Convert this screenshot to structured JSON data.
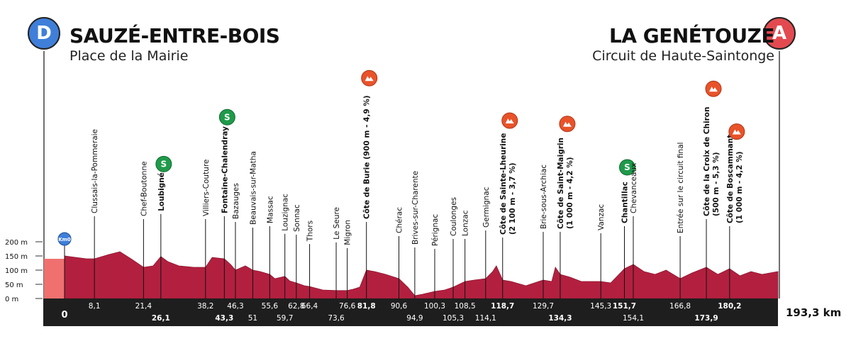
{
  "start": {
    "letter": "D",
    "name": "SAUZÉ-ENTRE-BOIS",
    "place": "Place de la Mairie",
    "km0_label": "Km0",
    "color": "#3f7fd9"
  },
  "finish": {
    "letter": "A",
    "name": "LA GENÉTOUZE",
    "place": "Circuit de Haute-Saintonge",
    "color": "#e24a50"
  },
  "total_distance_label": "193,3 km",
  "colors": {
    "profile": "#b3203f",
    "profile_start": "#f07070",
    "band": "#1e1e1e",
    "climb_marker": "#e8532a",
    "sprint_marker": "#1f9a4a"
  },
  "chart_data": {
    "type": "area",
    "xlim": [
      0,
      193.3
    ],
    "ylim": [
      0,
      200
    ],
    "y_ticks": [
      {
        "value": 0,
        "label": "0 m"
      },
      {
        "value": 50,
        "label": "50 m"
      },
      {
        "value": 100,
        "label": "100 m"
      },
      {
        "value": 150,
        "label": "150 m"
      },
      {
        "value": 200,
        "label": "200 m"
      }
    ],
    "x_label_start": "0",
    "x_label_end": "193,3 km",
    "profile": {
      "x": [
        0,
        3,
        6,
        8.1,
        12,
        15,
        18,
        21.4,
        24,
        26.1,
        28,
        31,
        35,
        38.2,
        40,
        43.3,
        45,
        46.3,
        49,
        51,
        53,
        55.6,
        57,
        59.7,
        61,
        62.8,
        65,
        66.4,
        70,
        73.6,
        76.6,
        78,
        80,
        81.8,
        84,
        87,
        90.6,
        93,
        94.9,
        97,
        100.3,
        103,
        105.3,
        108.5,
        111,
        114.1,
        116,
        117,
        118.7,
        121,
        125,
        129.7,
        132,
        133,
        134.3,
        137,
        140,
        145.3,
        148,
        151.7,
        154.1,
        157,
        160,
        163,
        166.8,
        170,
        173.9,
        177,
        180.2,
        183,
        186,
        189,
        193.3
      ],
      "y": [
        150,
        145,
        140,
        140,
        155,
        165,
        140,
        110,
        115,
        148,
        130,
        115,
        110,
        110,
        145,
        140,
        120,
        100,
        115,
        100,
        95,
        85,
        70,
        78,
        62,
        55,
        45,
        42,
        30,
        28,
        28,
        32,
        40,
        100,
        95,
        85,
        70,
        40,
        10,
        15,
        25,
        30,
        40,
        60,
        65,
        70,
        95,
        115,
        65,
        60,
        45,
        65,
        60,
        110,
        85,
        75,
        60,
        60,
        55,
        105,
        120,
        95,
        85,
        100,
        70,
        90,
        110,
        85,
        105,
        80,
        95,
        85,
        95
      ]
    },
    "km_markers": [
      {
        "km": 8.1,
        "label": "8,1",
        "row": 1,
        "bold": false,
        "place": "Clussais-la-Pommeraie"
      },
      {
        "km": 21.4,
        "label": "21,4",
        "row": 1,
        "bold": false,
        "place": "Chef-Boutonne"
      },
      {
        "km": 26.1,
        "label": "26,1",
        "row": 2,
        "bold": true,
        "place": "Loubigné",
        "sprint": true
      },
      {
        "km": 38.2,
        "label": "38,2",
        "row": 1,
        "bold": false,
        "place": "Villiers-Couture"
      },
      {
        "km": 43.3,
        "label": "43,3",
        "row": 2,
        "bold": true,
        "place": "Fontaine-Chalendray",
        "sprint": true
      },
      {
        "km": 46.3,
        "label": "46,3",
        "row": 1,
        "bold": false,
        "place": "Bazauges"
      },
      {
        "km": 51,
        "label": "51",
        "row": 2,
        "bold": false,
        "place": "Beauvais-sur-Matha"
      },
      {
        "km": 55.6,
        "label": "55,6",
        "row": 1,
        "bold": false,
        "place": "Massac"
      },
      {
        "km": 59.7,
        "label": "59,7",
        "row": 2,
        "bold": false,
        "place": "Louzignac"
      },
      {
        "km": 62.8,
        "label": "62,8",
        "row": 1,
        "bold": false,
        "place": "Sonnac"
      },
      {
        "km": 66.4,
        "label": "66,4",
        "row": 1,
        "bold": false,
        "place": "Thors"
      },
      {
        "km": 73.6,
        "label": "73,6",
        "row": 2,
        "bold": false,
        "place": "Le Seure"
      },
      {
        "km": 76.6,
        "label": "76,6",
        "row": 1,
        "bold": false,
        "place": "Migron"
      },
      {
        "km": 81.8,
        "label": "81,8",
        "row": 1,
        "bold": true,
        "place": "Côte de Burie (900 m - 4,9 %)",
        "climb": true
      },
      {
        "km": 90.6,
        "label": "90,6",
        "row": 1,
        "bold": false,
        "place": "Chérac"
      },
      {
        "km": 94.9,
        "label": "94,9",
        "row": 2,
        "bold": false,
        "place": "Brives-sur-Charente"
      },
      {
        "km": 100.3,
        "label": "100,3",
        "row": 1,
        "bold": false,
        "place": "Pérignac"
      },
      {
        "km": 105.3,
        "label": "105,3",
        "row": 2,
        "bold": false,
        "place": "Coulonges"
      },
      {
        "km": 108.5,
        "label": "108,5",
        "row": 1,
        "bold": false,
        "place": "Lonzac"
      },
      {
        "km": 114.1,
        "label": "114,1",
        "row": 2,
        "bold": false,
        "place": "Germignac"
      },
      {
        "km": 118.7,
        "label": "118,7",
        "row": 1,
        "bold": true,
        "place": "Côte de Sainte-Lheurine",
        "place2": "(2 100 m - 3,7 %)",
        "climb": true
      },
      {
        "km": 129.7,
        "label": "129,7",
        "row": 1,
        "bold": false,
        "place": "Brie-sous-Archiac"
      },
      {
        "km": 134.3,
        "label": "134,3",
        "row": 2,
        "bold": true,
        "place": "Côte de Saint-Maigrin",
        "place2": "(1 000 m - 4,2 %)",
        "climb": true
      },
      {
        "km": 145.3,
        "label": "145,3",
        "row": 1,
        "bold": false,
        "place": "Vanzac"
      },
      {
        "km": 151.7,
        "label": "151,7",
        "row": 1,
        "bold": true,
        "place": "Chantillac",
        "sprint": true
      },
      {
        "km": 154.1,
        "label": "154,1",
        "row": 2,
        "bold": false,
        "place": "Chevanceaux"
      },
      {
        "km": 166.8,
        "label": "166,8",
        "row": 1,
        "bold": false,
        "place": "Entrée sur le circuit final"
      },
      {
        "km": 173.9,
        "label": "173,9",
        "row": 2,
        "bold": true,
        "place": "Côte de la Croix de Chiron",
        "place2": "(500 m - 5,3 %)",
        "climb": true
      },
      {
        "km": 180.2,
        "label": "180,2",
        "row": 1,
        "bold": true,
        "place": "Côte de Boscammant",
        "place2": "(1 000 m - 4,2 %)",
        "climb": true
      }
    ]
  }
}
